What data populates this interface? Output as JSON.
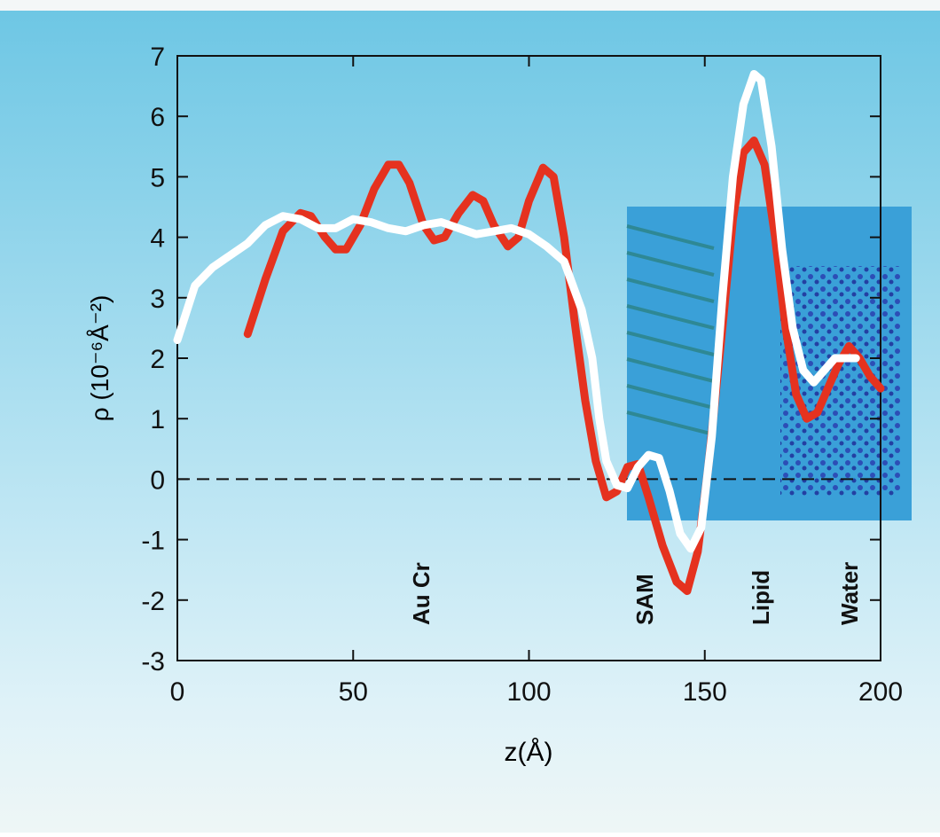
{
  "chart_data": {
    "type": "line",
    "xlabel": "z(Å)",
    "ylabel": "ρ (10⁻⁶Å⁻²)",
    "xlim": [
      0,
      200
    ],
    "ylim": [
      -3,
      7
    ],
    "xticks": [
      0,
      50,
      100,
      150,
      200
    ],
    "yticks": [
      -3,
      -2,
      -1,
      0,
      1,
      2,
      3,
      4,
      5,
      6,
      7
    ],
    "hline": 0,
    "annotations": [
      "Au Cr",
      "SAM",
      "Lipid",
      "Water"
    ],
    "series": [
      {
        "color": "#e5321f",
        "x": [
          20,
          25,
          30,
          35,
          38,
          42,
          45,
          48,
          52,
          56,
          60,
          63,
          66,
          70,
          73,
          76,
          80,
          84,
          87,
          90,
          94,
          97,
          100,
          104,
          107,
          110,
          113,
          116,
          119,
          122,
          125,
          128,
          131,
          134,
          138,
          142,
          145,
          148,
          151,
          155,
          158,
          161,
          164,
          167,
          170,
          173,
          176,
          179,
          182,
          185,
          188,
          191,
          194,
          197,
          200
        ],
        "values": [
          2.4,
          3.3,
          4.1,
          4.4,
          4.35,
          4.0,
          3.8,
          3.8,
          4.2,
          4.8,
          5.2,
          5.2,
          4.9,
          4.2,
          3.95,
          4.0,
          4.4,
          4.7,
          4.6,
          4.2,
          3.85,
          4.0,
          4.6,
          5.15,
          5.0,
          4.0,
          2.6,
          1.3,
          0.3,
          -0.3,
          -0.2,
          0.2,
          0.25,
          -0.3,
          -1.1,
          -1.7,
          -1.85,
          -1.2,
          0.2,
          2.5,
          4.3,
          5.4,
          5.6,
          5.2,
          4.0,
          2.5,
          1.4,
          1.0,
          1.1,
          1.5,
          1.9,
          2.2,
          2.0,
          1.7,
          1.5
        ]
      },
      {
        "color": "#ffffff",
        "x": [
          0,
          5,
          10,
          15,
          20,
          25,
          30,
          35,
          40,
          45,
          50,
          55,
          60,
          65,
          70,
          75,
          80,
          85,
          90,
          95,
          100,
          105,
          110,
          115,
          118,
          120,
          122,
          125,
          128,
          131,
          134,
          137,
          140,
          143,
          146,
          149,
          152,
          155,
          158,
          161,
          164,
          166,
          169,
          172,
          175,
          178,
          181,
          184,
          187,
          190,
          193
        ],
        "values": [
          2.3,
          3.2,
          3.5,
          3.7,
          3.9,
          4.2,
          4.35,
          4.3,
          4.15,
          4.15,
          4.3,
          4.25,
          4.15,
          4.1,
          4.2,
          4.25,
          4.15,
          4.05,
          4.1,
          4.15,
          4.05,
          3.85,
          3.6,
          2.8,
          2.0,
          1.0,
          0.3,
          -0.1,
          -0.15,
          0.2,
          0.4,
          0.35,
          -0.2,
          -0.9,
          -1.15,
          -0.8,
          0.7,
          3.0,
          5.0,
          6.2,
          6.7,
          6.6,
          5.5,
          3.8,
          2.5,
          1.8,
          1.6,
          1.8,
          2.0,
          2.0,
          2.0
        ]
      }
    ]
  }
}
